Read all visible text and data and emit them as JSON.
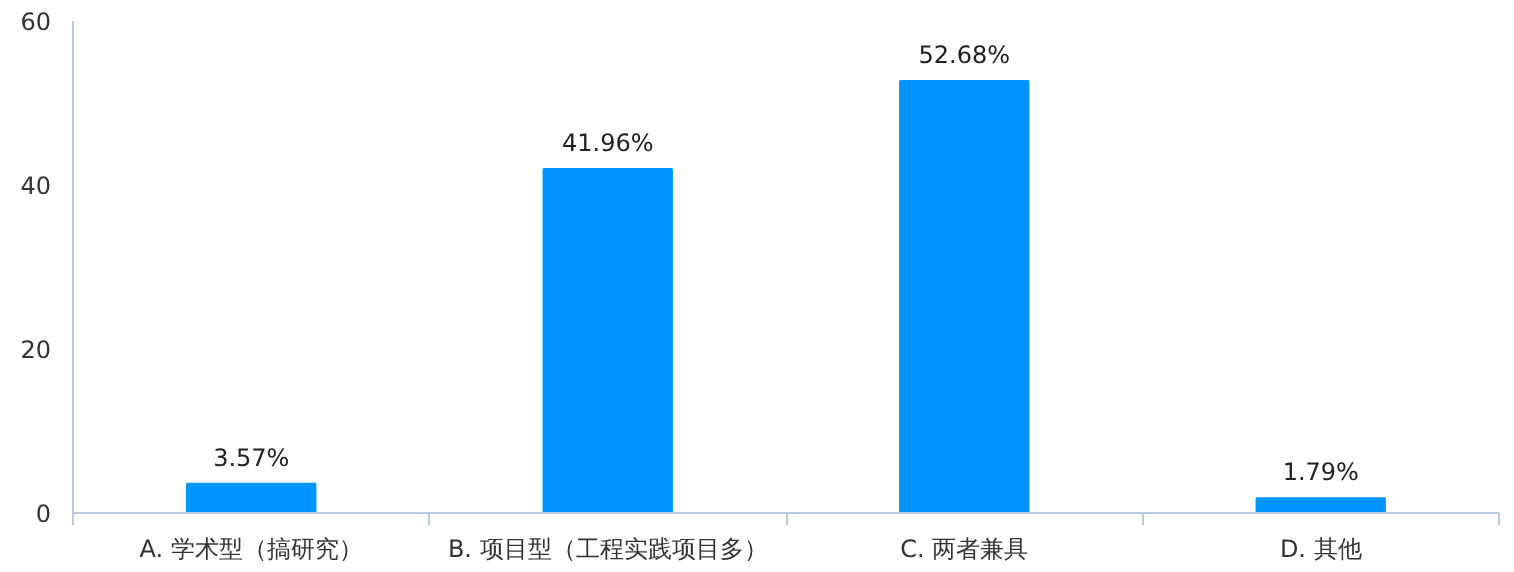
{
  "chart_data": {
    "type": "bar",
    "categories": [
      "A. 学术型（搞研究）",
      "B. 项目型（工程实践项目多）",
      "C. 两者兼具",
      "D. 其他"
    ],
    "values": [
      3.57,
      41.96,
      52.68,
      1.79
    ],
    "value_labels": [
      "3.57%",
      "41.96%",
      "52.68%",
      "1.79%"
    ],
    "color": "#0094ff",
    "ylim": [
      0,
      60
    ],
    "yticks": [
      0,
      20,
      40,
      60
    ],
    "grid": false
  }
}
